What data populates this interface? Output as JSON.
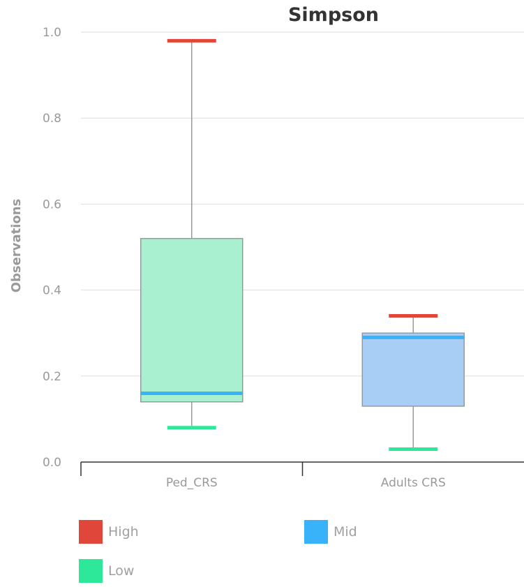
{
  "chart_data": {
    "type": "boxplot",
    "title": "Simpson",
    "ylabel": "Observations",
    "xlabel": "",
    "ylim": [
      0,
      1.0
    ],
    "yticks": [
      "0.0",
      "0.2",
      "0.4",
      "0.6",
      "0.8",
      "1.0"
    ],
    "ytick_values": [
      0,
      0.2,
      0.4,
      0.6,
      0.8,
      1.0
    ],
    "grid": true,
    "categories": [
      "Ped_CRS",
      "Adults CRS"
    ],
    "boxes": [
      {
        "category": "Ped_CRS",
        "low": 0.08,
        "q1": 0.14,
        "mid": 0.16,
        "q3": 0.52,
        "high": 0.98,
        "fill": "#a8f0d0"
      },
      {
        "category": "Adults CRS",
        "low": 0.03,
        "q1": 0.13,
        "mid": 0.29,
        "q3": 0.3,
        "high": 0.34,
        "fill": "#a8cef5"
      }
    ],
    "legend": [
      {
        "name": "High",
        "color": "#e0473a"
      },
      {
        "name": "Mid",
        "color": "#38b2f8"
      },
      {
        "name": "Low",
        "color": "#2ee89a"
      }
    ],
    "legend_placement": "bottom"
  }
}
